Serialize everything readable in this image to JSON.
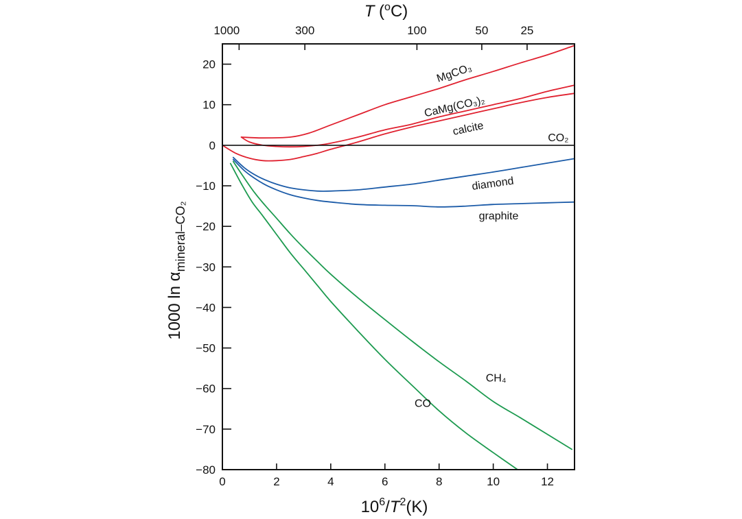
{
  "chart_data": {
    "type": "line",
    "title": "",
    "xlabel": "10^6/T^2 (K)",
    "xlabel_parts": {
      "base": "10",
      "exp": "6",
      "slash": "/",
      "var": "T",
      "pow": "2",
      "unit": "(K)"
    },
    "ylabel": "1000 ln α mineral–CO2",
    "ylabel_parts": {
      "prefix": "1000 ln ",
      "alpha": "α",
      "sub": "mineral–CO₂"
    },
    "top_xlabel": "T (°C)",
    "top_xlabel_parts": {
      "var": "T",
      "rest_open": " (",
      "deg": "o",
      "rest_close": "C)"
    },
    "xlim": [
      0,
      13
    ],
    "ylim": [
      -80,
      25
    ],
    "xticks": [
      0,
      2,
      4,
      6,
      8,
      10,
      12
    ],
    "xtick_labels": [
      "0",
      "2",
      "4",
      "6",
      "8",
      "10",
      "12"
    ],
    "yticks": [
      20,
      10,
      0,
      -10,
      -20,
      -30,
      -40,
      -50,
      -60,
      -70,
      -80
    ],
    "ytick_labels": [
      "20",
      "10",
      "0",
      "−10",
      "−20",
      "−30",
      "−40",
      "−50",
      "−60",
      "−70",
      "−80"
    ],
    "top_ticks_celsius": [
      1000,
      300,
      100,
      50,
      25
    ],
    "top_tick_labels": [
      "1000",
      "300",
      "100",
      "50",
      "25"
    ],
    "grid": false,
    "legend": "inline labels",
    "colors": {
      "carbonate": "#e0212f",
      "carbon": "#1b5ba8",
      "gas": "#1c9a4f",
      "reference": "#111111"
    },
    "series": [
      {
        "name": "MgCO₃",
        "color_key": "carbonate",
        "x": [
          0.7,
          1.5,
          2.5,
          3.2,
          4.0,
          5.0,
          6.0,
          7.0,
          8.0,
          9.0,
          10.0,
          11.0,
          12.0,
          13.0
        ],
        "y": [
          2.0,
          1.8,
          2.0,
          3.0,
          5.0,
          7.5,
          10.0,
          12.0,
          14.0,
          16.2,
          18.2,
          20.3,
          22.3,
          24.6
        ]
      },
      {
        "name": "CaMg(CO₃)₂",
        "color_key": "carbonate",
        "x": [
          0.7,
          1.0,
          1.5,
          2.0,
          2.5,
          3.0,
          3.5,
          4.0,
          5.0,
          6.0,
          7.0,
          8.0,
          9.0,
          10.0,
          11.0,
          12.0,
          13.0
        ],
        "y": [
          2.0,
          0.8,
          0.0,
          -0.3,
          -0.4,
          -0.3,
          0.0,
          0.5,
          2.0,
          3.8,
          5.2,
          7.0,
          8.5,
          10.0,
          11.5,
          13.3,
          14.8
        ]
      },
      {
        "name": "calcite",
        "color_key": "carbonate",
        "x": [
          0.0,
          0.5,
          1.0,
          1.5,
          2.0,
          2.5,
          3.0,
          3.5,
          4.0,
          5.0,
          6.0,
          7.0,
          8.0,
          9.0,
          10.0,
          11.0,
          12.0,
          13.0
        ],
        "y": [
          0.0,
          -2.0,
          -3.2,
          -3.8,
          -3.8,
          -3.5,
          -2.8,
          -2.0,
          -1.0,
          0.8,
          2.8,
          4.5,
          6.0,
          7.5,
          9.0,
          10.5,
          11.8,
          12.8
        ]
      },
      {
        "name": "CO₂",
        "color_key": "reference",
        "x": [
          0.0,
          13.0
        ],
        "y": [
          0.0,
          0.0
        ]
      },
      {
        "name": "diamond",
        "color_key": "carbon",
        "x": [
          0.4,
          0.8,
          1.2,
          1.6,
          2.0,
          2.5,
          3.0,
          3.5,
          4.0,
          5.0,
          6.0,
          7.0,
          8.0,
          9.0,
          10.0,
          11.0,
          12.0,
          13.0
        ],
        "y": [
          -3.0,
          -5.5,
          -7.3,
          -8.6,
          -9.6,
          -10.5,
          -11.0,
          -11.3,
          -11.3,
          -11.0,
          -10.3,
          -9.6,
          -8.6,
          -7.6,
          -6.6,
          -5.5,
          -4.4,
          -3.3
        ]
      },
      {
        "name": "graphite",
        "color_key": "carbon",
        "x": [
          0.4,
          0.8,
          1.2,
          1.6,
          2.0,
          2.5,
          3.0,
          3.5,
          4.0,
          5.0,
          6.0,
          7.0,
          8.0,
          9.0,
          10.0,
          11.0,
          12.0,
          13.0
        ],
        "y": [
          -3.5,
          -6.2,
          -8.2,
          -9.8,
          -11.0,
          -12.2,
          -13.0,
          -13.6,
          -14.0,
          -14.6,
          -14.8,
          -14.9,
          -15.2,
          -15.0,
          -14.6,
          -14.4,
          -14.2,
          -14.0
        ]
      },
      {
        "name": "CH₄",
        "color_key": "gas",
        "x": [
          0.4,
          0.8,
          1.2,
          1.6,
          2.0,
          2.5,
          3.0,
          3.5,
          4.0,
          5.0,
          6.0,
          7.0,
          8.0,
          9.0,
          10.0,
          11.0,
          12.0,
          12.9
        ],
        "y": [
          -4.0,
          -8.0,
          -11.8,
          -15.0,
          -18.0,
          -21.8,
          -25.3,
          -28.6,
          -31.8,
          -37.6,
          -43.0,
          -48.3,
          -53.4,
          -58.2,
          -63.2,
          -67.2,
          -71.3,
          -75.0
        ]
      },
      {
        "name": "CO",
        "color_key": "gas",
        "x": [
          0.3,
          0.7,
          1.1,
          1.5,
          2.0,
          2.5,
          3.0,
          3.5,
          4.0,
          5.0,
          6.0,
          7.0,
          8.0,
          9.0,
          10.0,
          10.9
        ],
        "y": [
          -4.5,
          -9.5,
          -14.0,
          -17.5,
          -22.0,
          -26.5,
          -30.5,
          -34.5,
          -38.5,
          -45.8,
          -52.8,
          -59.2,
          -65.5,
          -71.0,
          -75.8,
          -80.0
        ]
      }
    ],
    "annotations": [
      {
        "text": "MgCO₃",
        "series": "MgCO₃",
        "x": 8.6,
        "y": 17.0,
        "angle": -19
      },
      {
        "text": "CaMg(CO₃)₂",
        "series": "CaMg(CO₃)₂",
        "x": 8.6,
        "y": 8.7,
        "angle": -13
      },
      {
        "text": "calcite",
        "series": "calcite",
        "x": 9.1,
        "y": 3.3,
        "angle": -12
      },
      {
        "text": "CO₂",
        "series": "CO₂",
        "x": 12.4,
        "y": 1.0,
        "angle": 0
      },
      {
        "text": "diamond",
        "series": "diamond",
        "x": 10.0,
        "y": -10.3,
        "angle": -8
      },
      {
        "text": "graphite",
        "series": "graphite",
        "x": 10.2,
        "y": -18.3,
        "angle": 0
      },
      {
        "text": "CH₄",
        "series": "CH₄",
        "x": 10.1,
        "y": -58.3,
        "angle": 0
      },
      {
        "text": "CO",
        "series": "CO",
        "x": 7.4,
        "y": -64.5,
        "angle": 0
      }
    ]
  }
}
